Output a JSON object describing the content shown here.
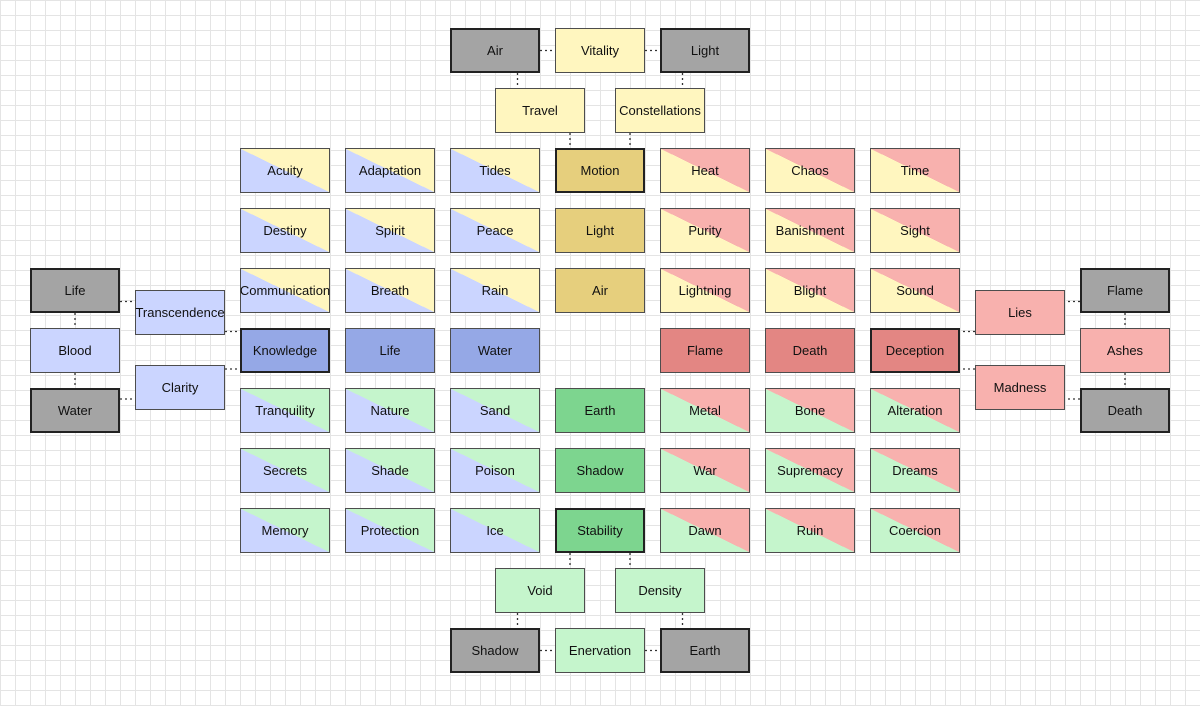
{
  "colors": {
    "yellow": "#fff6bf",
    "blue": "#cbd5ff",
    "green": "#c5f5cc",
    "red": "#f8b1ae",
    "gray": "#a4a4a4",
    "center_yellow": "#e6cf7d",
    "center_blue": "#95a8e6",
    "center_green": "#7dd58f",
    "center_red": "#e38683"
  },
  "nodes": [
    {
      "id": "top-air",
      "label": "Air",
      "fill": "gray",
      "thick": true
    },
    {
      "id": "top-vitality",
      "label": "Vitality",
      "fill": "yellow"
    },
    {
      "id": "top-light",
      "label": "Light",
      "fill": "gray",
      "thick": true
    },
    {
      "id": "travel",
      "label": "Travel",
      "fill": "yellow"
    },
    {
      "id": "constellations",
      "label": "Constellations",
      "fill": "yellow"
    },
    {
      "id": "acuity",
      "label": "Acuity",
      "fill": "blue/yellow"
    },
    {
      "id": "adaptation",
      "label": "Adaptation",
      "fill": "blue/yellow"
    },
    {
      "id": "tides",
      "label": "Tides",
      "fill": "blue/yellow"
    },
    {
      "id": "motion",
      "label": "Motion",
      "fill": "center_yellow",
      "thick": true
    },
    {
      "id": "heat",
      "label": "Heat",
      "fill": "yellow/red"
    },
    {
      "id": "chaos",
      "label": "Chaos",
      "fill": "yellow/red"
    },
    {
      "id": "time",
      "label": "Time",
      "fill": "yellow/red"
    },
    {
      "id": "destiny",
      "label": "Destiny",
      "fill": "blue/yellow"
    },
    {
      "id": "spirit",
      "label": "Spirit",
      "fill": "blue/yellow"
    },
    {
      "id": "peace",
      "label": "Peace",
      "fill": "blue/yellow"
    },
    {
      "id": "light-center",
      "label": "Light",
      "fill": "center_yellow"
    },
    {
      "id": "purity",
      "label": "Purity",
      "fill": "yellow/red"
    },
    {
      "id": "banishment",
      "label": "Banishment",
      "fill": "yellow/red"
    },
    {
      "id": "sight",
      "label": "Sight",
      "fill": "yellow/red"
    },
    {
      "id": "communication",
      "label": "Communication",
      "fill": "blue/yellow"
    },
    {
      "id": "breath",
      "label": "Breath",
      "fill": "blue/yellow"
    },
    {
      "id": "rain",
      "label": "Rain",
      "fill": "blue/yellow"
    },
    {
      "id": "air-center",
      "label": "Air",
      "fill": "center_yellow"
    },
    {
      "id": "lightning",
      "label": "Lightning",
      "fill": "yellow/red"
    },
    {
      "id": "blight",
      "label": "Blight",
      "fill": "yellow/red"
    },
    {
      "id": "sound",
      "label": "Sound",
      "fill": "yellow/red"
    },
    {
      "id": "knowledge",
      "label": "Knowledge",
      "fill": "center_blue",
      "thick": true
    },
    {
      "id": "life-center",
      "label": "Life",
      "fill": "center_blue"
    },
    {
      "id": "water-center",
      "label": "Water",
      "fill": "center_blue"
    },
    {
      "id": "flame-center",
      "label": "Flame",
      "fill": "center_red"
    },
    {
      "id": "death-center",
      "label": "Death",
      "fill": "center_red"
    },
    {
      "id": "deception",
      "label": "Deception",
      "fill": "center_red",
      "thick": true
    },
    {
      "id": "tranquility",
      "label": "Tranquility",
      "fill": "blue/green"
    },
    {
      "id": "nature",
      "label": "Nature",
      "fill": "blue/green"
    },
    {
      "id": "sand",
      "label": "Sand",
      "fill": "blue/green"
    },
    {
      "id": "earth-center",
      "label": "Earth",
      "fill": "center_green"
    },
    {
      "id": "metal",
      "label": "Metal",
      "fill": "green/red"
    },
    {
      "id": "bone",
      "label": "Bone",
      "fill": "green/red"
    },
    {
      "id": "alteration",
      "label": "Alteration",
      "fill": "green/red"
    },
    {
      "id": "secrets",
      "label": "Secrets",
      "fill": "blue/green"
    },
    {
      "id": "shade",
      "label": "Shade",
      "fill": "blue/green"
    },
    {
      "id": "poison",
      "label": "Poison",
      "fill": "blue/green"
    },
    {
      "id": "shadow-center",
      "label": "Shadow",
      "fill": "center_green"
    },
    {
      "id": "war",
      "label": "War",
      "fill": "green/red"
    },
    {
      "id": "supremacy",
      "label": "Supremacy",
      "fill": "green/red"
    },
    {
      "id": "dreams",
      "label": "Dreams",
      "fill": "green/red"
    },
    {
      "id": "memory",
      "label": "Memory",
      "fill": "blue/green"
    },
    {
      "id": "protection",
      "label": "Protection",
      "fill": "blue/green"
    },
    {
      "id": "ice",
      "label": "Ice",
      "fill": "blue/green"
    },
    {
      "id": "stability",
      "label": "Stability",
      "fill": "center_green",
      "thick": true
    },
    {
      "id": "dawn",
      "label": "Dawn",
      "fill": "green/red"
    },
    {
      "id": "ruin",
      "label": "Ruin",
      "fill": "green/red"
    },
    {
      "id": "coercion",
      "label": "Coercion",
      "fill": "green/red"
    },
    {
      "id": "void",
      "label": "Void",
      "fill": "green"
    },
    {
      "id": "density",
      "label": "Density",
      "fill": "green"
    },
    {
      "id": "bottom-shadow",
      "label": "Shadow",
      "fill": "gray",
      "thick": true
    },
    {
      "id": "enervation",
      "label": "Enervation",
      "fill": "green"
    },
    {
      "id": "bottom-earth",
      "label": "Earth",
      "fill": "gray",
      "thick": true
    },
    {
      "id": "left-life",
      "label": "Life",
      "fill": "gray",
      "thick": true
    },
    {
      "id": "left-blood",
      "label": "Blood",
      "fill": "blue"
    },
    {
      "id": "left-water",
      "label": "Water",
      "fill": "gray",
      "thick": true
    },
    {
      "id": "transcendence",
      "label": "Transcendence",
      "fill": "blue"
    },
    {
      "id": "clarity",
      "label": "Clarity",
      "fill": "blue"
    },
    {
      "id": "right-flame",
      "label": "Flame",
      "fill": "gray",
      "thick": true
    },
    {
      "id": "right-ashes",
      "label": "Ashes",
      "fill": "red"
    },
    {
      "id": "right-death",
      "label": "Death",
      "fill": "gray",
      "thick": true
    },
    {
      "id": "lies",
      "label": "Lies",
      "fill": "red"
    },
    {
      "id": "madness",
      "label": "Madness",
      "fill": "red"
    }
  ],
  "edges": [
    [
      "top-air",
      "top-vitality"
    ],
    [
      "top-vitality",
      "top-light"
    ],
    [
      "top-air",
      "travel"
    ],
    [
      "top-light",
      "constellations"
    ],
    [
      "travel",
      "motion"
    ],
    [
      "constellations",
      "motion"
    ],
    [
      "stability",
      "void"
    ],
    [
      "stability",
      "density"
    ],
    [
      "void",
      "bottom-shadow"
    ],
    [
      "density",
      "bottom-earth"
    ],
    [
      "bottom-shadow",
      "enervation"
    ],
    [
      "enervation",
      "bottom-earth"
    ],
    [
      "left-life",
      "left-blood"
    ],
    [
      "left-blood",
      "left-water"
    ],
    [
      "left-life",
      "transcendence"
    ],
    [
      "left-water",
      "clarity"
    ],
    [
      "transcendence",
      "knowledge"
    ],
    [
      "clarity",
      "knowledge"
    ],
    [
      "right-flame",
      "right-ashes"
    ],
    [
      "right-ashes",
      "right-death"
    ],
    [
      "right-flame",
      "lies"
    ],
    [
      "right-death",
      "madness"
    ],
    [
      "lies",
      "deception"
    ],
    [
      "madness",
      "deception"
    ]
  ]
}
